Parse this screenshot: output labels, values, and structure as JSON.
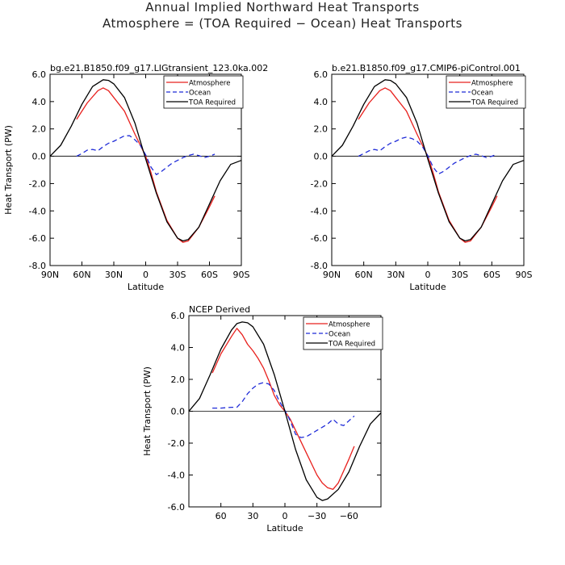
{
  "page": {
    "title_line1": "Annual Implied Northward Heat Transports",
    "title_line2": "Atmosphere = (TOA Required − Ocean) Heat Transports"
  },
  "colors": {
    "atmosphere": "#e8201d",
    "ocean": "#1f2bd8",
    "toa": "#000000",
    "zero": "#000000"
  },
  "chart_data": [
    {
      "type": "line",
      "title": "bg.e21.B1850.f09_g17.LIGtransient_123.0ka.002",
      "xlabel": "Latitude",
      "ylabel": "Heat Transport (PW)",
      "xlim": [
        90,
        -90
      ],
      "ylim": [
        -8,
        6
      ],
      "xticks": [
        90,
        60,
        30,
        0,
        -30,
        -60,
        -90
      ],
      "xtick_labels": [
        "90N",
        "60N",
        "30N",
        "0",
        "30S",
        "60S",
        "90S"
      ],
      "yticks": [
        6,
        4,
        2,
        0,
        -2,
        -4,
        -6,
        -8
      ],
      "ytick_labels": [
        "6.0",
        "4.0",
        "2.0",
        "0.0",
        "-2.0",
        "-4.0",
        "-6.0",
        "-8.0"
      ],
      "legend_position": "top-right",
      "series": [
        {
          "name": "Atmosphere",
          "color": "#e8201d",
          "style": "solid",
          "x": [
            65,
            55,
            45,
            40,
            35,
            30,
            20,
            10,
            5,
            0,
            -5,
            -10,
            -20,
            -30,
            -35,
            -40,
            -50,
            -60,
            -65
          ],
          "y": [
            2.7,
            3.9,
            4.8,
            5.0,
            4.8,
            4.3,
            3.3,
            1.6,
            0.8,
            0.0,
            -1.2,
            -2.6,
            -4.7,
            -6.0,
            -6.3,
            -6.2,
            -5.2,
            -3.7,
            -2.9
          ]
        },
        {
          "name": "Ocean",
          "color": "#1f2bd8",
          "style": "dashed",
          "x": [
            65,
            60,
            55,
            50,
            45,
            40,
            35,
            30,
            25,
            20,
            15,
            10,
            5,
            0,
            -5,
            -10,
            -15,
            -20,
            -25,
            -30,
            -35,
            -40,
            -45,
            -50,
            -55,
            -60,
            -65
          ],
          "y": [
            0.0,
            0.2,
            0.45,
            0.5,
            0.4,
            0.7,
            0.95,
            1.1,
            1.3,
            1.5,
            1.5,
            1.2,
            0.8,
            0.1,
            -0.8,
            -1.35,
            -1.1,
            -0.8,
            -0.5,
            -0.3,
            -0.1,
            0.05,
            0.15,
            0.05,
            -0.1,
            0.0,
            0.15
          ]
        },
        {
          "name": "TOA Required",
          "color": "#000000",
          "style": "solid",
          "x": [
            90,
            80,
            70,
            60,
            50,
            40,
            35,
            30,
            20,
            10,
            0,
            -10,
            -20,
            -30,
            -35,
            -40,
            -50,
            -60,
            -70,
            -80,
            -90
          ],
          "y": [
            0.0,
            0.8,
            2.2,
            3.8,
            5.1,
            5.6,
            5.55,
            5.3,
            4.3,
            2.4,
            -0.2,
            -2.7,
            -4.8,
            -6.0,
            -6.2,
            -6.1,
            -5.2,
            -3.5,
            -1.8,
            -0.6,
            -0.3
          ]
        }
      ]
    },
    {
      "type": "line",
      "title": "b.e21.B1850.f09_g17.CMIP6-piControl.001",
      "xlabel": "Latitude",
      "ylabel": "",
      "xlim": [
        90,
        -90
      ],
      "ylim": [
        -8,
        6
      ],
      "xticks": [
        90,
        60,
        30,
        0,
        -30,
        -60,
        -90
      ],
      "xtick_labels": [
        "90N",
        "60N",
        "30N",
        "0",
        "30S",
        "60S",
        "90S"
      ],
      "yticks": [
        6,
        4,
        2,
        0,
        -2,
        -4,
        -6,
        -8
      ],
      "ytick_labels": [
        "6.0",
        "4.0",
        "2.0",
        "0.0",
        "-2.0",
        "-4.0",
        "-6.0",
        "-8.0"
      ],
      "legend_position": "top-right",
      "series": [
        {
          "name": "Atmosphere",
          "color": "#e8201d",
          "style": "solid",
          "x": [
            65,
            55,
            45,
            40,
            35,
            30,
            20,
            10,
            5,
            0,
            -5,
            -10,
            -20,
            -30,
            -35,
            -40,
            -50,
            -60,
            -65
          ],
          "y": [
            2.7,
            3.9,
            4.8,
            5.0,
            4.8,
            4.3,
            3.3,
            1.6,
            0.8,
            0.0,
            -1.2,
            -2.6,
            -4.7,
            -6.0,
            -6.3,
            -6.2,
            -5.2,
            -3.7,
            -2.9
          ]
        },
        {
          "name": "Ocean",
          "color": "#1f2bd8",
          "style": "dashed",
          "x": [
            65,
            60,
            55,
            50,
            45,
            40,
            35,
            30,
            25,
            20,
            15,
            10,
            5,
            0,
            -5,
            -10,
            -15,
            -20,
            -25,
            -30,
            -35,
            -40,
            -45,
            -50,
            -55,
            -60,
            -65
          ],
          "y": [
            0.0,
            0.2,
            0.4,
            0.5,
            0.4,
            0.7,
            0.95,
            1.1,
            1.3,
            1.4,
            1.3,
            1.1,
            0.7,
            0.05,
            -0.8,
            -1.3,
            -1.1,
            -0.8,
            -0.5,
            -0.3,
            -0.1,
            0.05,
            0.15,
            0.05,
            -0.1,
            0.0,
            0.15
          ]
        },
        {
          "name": "TOA Required",
          "color": "#000000",
          "style": "solid",
          "x": [
            90,
            80,
            70,
            60,
            50,
            40,
            35,
            30,
            20,
            10,
            0,
            -10,
            -20,
            -30,
            -35,
            -40,
            -50,
            -60,
            -70,
            -80,
            -90
          ],
          "y": [
            0.0,
            0.8,
            2.2,
            3.8,
            5.1,
            5.6,
            5.55,
            5.3,
            4.3,
            2.4,
            -0.2,
            -2.7,
            -4.8,
            -6.0,
            -6.2,
            -6.1,
            -5.2,
            -3.5,
            -1.8,
            -0.6,
            -0.3
          ]
        }
      ]
    },
    {
      "type": "line",
      "title": "NCEP Derived",
      "xlabel": "Latitude",
      "ylabel": "Heat Transport (PW)",
      "xlim": [
        90,
        -90
      ],
      "ylim": [
        -6,
        6
      ],
      "xticks": [
        60,
        30,
        0,
        -30,
        -60
      ],
      "xtick_labels": [
        "60",
        "30",
        "0",
        "−30",
        "−60"
      ],
      "yticks": [
        6,
        4,
        2,
        0,
        -2,
        -4,
        -6
      ],
      "ytick_labels": [
        "6.0",
        "4.0",
        "2.0",
        "0.0",
        "-2.0",
        "-4.0",
        "-6.0"
      ],
      "legend_position": "top-right",
      "series": [
        {
          "name": "Atmosphere",
          "color": "#e8201d",
          "style": "solid",
          "x": [
            68,
            60,
            50,
            45,
            40,
            35,
            30,
            25,
            20,
            15,
            10,
            5,
            0,
            -5,
            -10,
            -20,
            -30,
            -35,
            -40,
            -45,
            -50,
            -60,
            -65
          ],
          "y": [
            2.4,
            3.6,
            4.7,
            5.2,
            4.8,
            4.2,
            3.8,
            3.3,
            2.7,
            1.9,
            1.0,
            0.4,
            0.0,
            -0.5,
            -1.2,
            -2.6,
            -4.0,
            -4.5,
            -4.8,
            -4.9,
            -4.5,
            -3.0,
            -2.2
          ]
        },
        {
          "name": "Ocean",
          "color": "#1f2bd8",
          "style": "dashed",
          "x": [
            68,
            60,
            50,
            45,
            40,
            35,
            30,
            25,
            20,
            15,
            10,
            5,
            0,
            -5,
            -10,
            -15,
            -20,
            -25,
            -30,
            -35,
            -40,
            -45,
            -50,
            -55,
            -60,
            -65
          ],
          "y": [
            0.2,
            0.2,
            0.25,
            0.25,
            0.6,
            1.1,
            1.45,
            1.7,
            1.8,
            1.7,
            1.3,
            0.6,
            0.05,
            -0.6,
            -1.45,
            -1.65,
            -1.6,
            -1.4,
            -1.2,
            -1.0,
            -0.8,
            -0.5,
            -0.8,
            -0.9,
            -0.6,
            -0.3
          ]
        },
        {
          "name": "TOA Required",
          "color": "#000000",
          "style": "solid",
          "x": [
            90,
            80,
            70,
            60,
            50,
            45,
            40,
            35,
            30,
            20,
            10,
            0,
            -10,
            -20,
            -30,
            -35,
            -40,
            -50,
            -60,
            -70,
            -80,
            -90
          ],
          "y": [
            0.0,
            0.8,
            2.3,
            3.9,
            5.1,
            5.5,
            5.6,
            5.55,
            5.3,
            4.2,
            2.3,
            0.0,
            -2.4,
            -4.3,
            -5.4,
            -5.6,
            -5.5,
            -4.9,
            -3.8,
            -2.2,
            -0.8,
            -0.1
          ]
        }
      ]
    }
  ]
}
